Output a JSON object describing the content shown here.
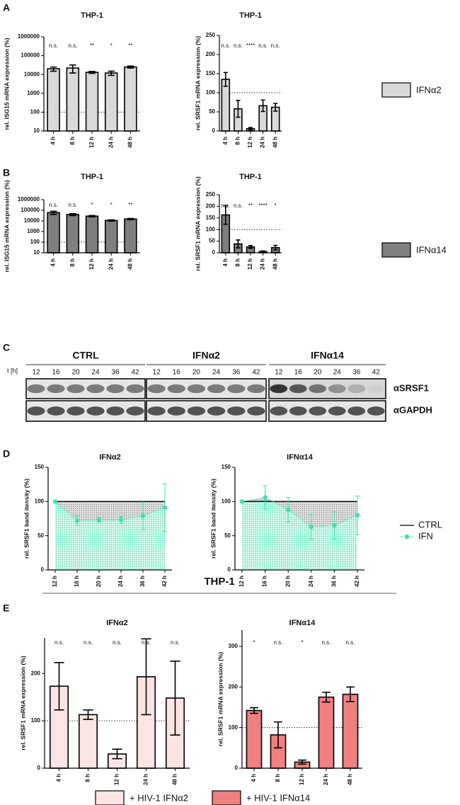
{
  "panels": [
    "A",
    "B",
    "C",
    "D",
    "E"
  ],
  "panel_e_title": "THP-1",
  "blot": {
    "groups": [
      "CTRL",
      "IFNα2",
      "IFNα14"
    ],
    "time_label": "t [h]",
    "times": [
      12,
      16,
      20,
      24,
      36,
      42
    ],
    "antibodies": [
      "αSRSF1",
      "αGAPDH"
    ]
  },
  "chart_data": [
    {
      "type": "bar",
      "title": "THP-1",
      "y_label": "rel. ISG15 mRNA expression (%)",
      "log": true,
      "categories": [
        "4 h",
        "8 h",
        "12 h",
        "24 h",
        "48 h"
      ],
      "series": [
        {
          "color": "#d9d9d9",
          "values": [
            20000,
            22000,
            13000,
            12000,
            25000
          ],
          "errors": [
            5000,
            10000,
            1500,
            3000,
            3000
          ]
        }
      ],
      "annotations": [
        "n.s.",
        "n.s.",
        "**",
        "*",
        "**"
      ],
      "reference_line": 100,
      "ylim": [
        10,
        1000000
      ],
      "yticks": [
        10,
        100,
        1000,
        10000,
        100000,
        1000000
      ]
    },
    {
      "type": "bar",
      "title": "THP-1",
      "y_label": "rel. SRSF1 mRNA expression (%)",
      "categories": [
        "4 h",
        "8 h",
        "12 h",
        "24 h",
        "48 h"
      ],
      "series": [
        {
          "name": "IFNα2",
          "color": "#d9d9d9",
          "values": [
            135,
            58,
            6,
            66,
            62
          ],
          "errors": [
            18,
            22,
            3,
            15,
            10
          ]
        }
      ],
      "annotations": [
        "n.s.",
        "n.s.",
        "****",
        "n.s.",
        "n.s."
      ],
      "reference_line": 100,
      "legend": "right",
      "ylim": [
        0,
        250
      ],
      "yticks": [
        0,
        50,
        100,
        150,
        200,
        250
      ]
    },
    {
      "type": "bar",
      "title": "THP-1",
      "y_label": "rel. ISG15 mRNA expression (%)",
      "log": true,
      "categories": [
        "4 h",
        "8 h",
        "12 h",
        "24 h",
        "48 h"
      ],
      "series": [
        {
          "color": "#7f7f7f",
          "values": [
            60000,
            40000,
            28000,
            11000,
            15000
          ],
          "errors": [
            20000,
            8000,
            4000,
            1500,
            2000
          ]
        }
      ],
      "annotations": [
        "n.s.",
        "n.s.",
        "*",
        "*",
        "**"
      ],
      "reference_line": 100,
      "ylim": [
        10,
        1000000
      ],
      "yticks": [
        10,
        100,
        1000,
        10000,
        100000,
        1000000
      ]
    },
    {
      "type": "bar",
      "title": "THP-1",
      "y_label": "rel. SRSF1 mRNA expression (%)",
      "categories": [
        "4 h",
        "8 h",
        "12 h",
        "24 h",
        "48 h"
      ],
      "series": [
        {
          "name": "IFNα14",
          "color": "#7f7f7f",
          "values": [
            163,
            38,
            25,
            5,
            22
          ],
          "errors": [
            40,
            17,
            6,
            3,
            10
          ]
        }
      ],
      "annotations": [
        "n.s.",
        "n.s.",
        "**",
        "****",
        "*"
      ],
      "reference_line": 100,
      "legend": "right",
      "ylim": [
        0,
        250
      ],
      "yticks": [
        0,
        50,
        100,
        150,
        200,
        250
      ]
    },
    {
      "type": "line",
      "title": "IFNα2",
      "y_label": "rel. SRSF1 band itensity (%)",
      "categories": [
        "12 h",
        "16 h",
        "20 h",
        "24 h",
        "36 h",
        "42 h"
      ],
      "series": [
        {
          "color": "#000000",
          "linestyle": "solid",
          "values": [
            100,
            100,
            100,
            100,
            100,
            100
          ]
        },
        {
          "color": "#3ee0b0",
          "linestyle": "dotted",
          "values": [
            100,
            72,
            73,
            73,
            79,
            91
          ],
          "errors": [
            null,
            7,
            3,
            5,
            20,
            35
          ]
        }
      ],
      "ylim": [
        0,
        150
      ],
      "yticks": [
        0,
        50,
        100,
        150
      ]
    },
    {
      "type": "line",
      "title": "IFNα14",
      "y_label": "rel. SRSF1 band itensity (%)",
      "categories": [
        "12 h",
        "16 h",
        "20 h",
        "24 h",
        "36 h",
        "42 h"
      ],
      "series": [
        {
          "name": "CTRL",
          "color": "#000000",
          "linestyle": "solid",
          "values": [
            100,
            100,
            100,
            100,
            100,
            100
          ]
        },
        {
          "name": "IFN",
          "color": "#3ee0b0",
          "linestyle": "dotted",
          "values": [
            100,
            106,
            88,
            63,
            65,
            80
          ],
          "errors": [
            null,
            17,
            18,
            18,
            20,
            28
          ]
        }
      ],
      "legend": "right",
      "ylim": [
        0,
        150
      ],
      "yticks": [
        0,
        50,
        100,
        150
      ]
    },
    {
      "type": "bar",
      "title": "IFNα2",
      "y_label": "rel. SRSF1 mRNA expression (%)",
      "categories": [
        "4 h",
        "8 h",
        "12 h",
        "24 h",
        "48 h"
      ],
      "series": [
        {
          "name": "+ HIV-1 IFNα2",
          "color": "#fce4e4",
          "values": [
            173,
            113,
            30,
            193,
            148
          ],
          "errors": [
            50,
            10,
            10,
            80,
            78
          ]
        }
      ],
      "annotations": [
        "n.s.",
        "n.s.",
        "n.s.",
        "n.s.",
        "n.s."
      ],
      "reference_line": 100,
      "legend": "bottom",
      "ylim": [
        0,
        275
      ],
      "yticks": [
        0,
        100,
        200
      ]
    },
    {
      "type": "bar",
      "title": "IFNα14",
      "y_label": "rel. SRSF1 mRNA expression (%)",
      "categories": [
        "4 h",
        "8 h",
        "12 h",
        "24 h",
        "48 h"
      ],
      "series": [
        {
          "name": "+ HIV-1 IFNα14",
          "color": "#f08080",
          "values": [
            142,
            82,
            15,
            175,
            182
          ],
          "errors": [
            7,
            32,
            5,
            12,
            18
          ]
        }
      ],
      "annotations": [
        "*",
        "n.s.",
        "*",
        "n.s.",
        "n.s."
      ],
      "reference_line": 100,
      "legend": "bottom",
      "ylim": [
        0,
        340
      ],
      "yticks": [
        0,
        100,
        200,
        300
      ]
    }
  ]
}
